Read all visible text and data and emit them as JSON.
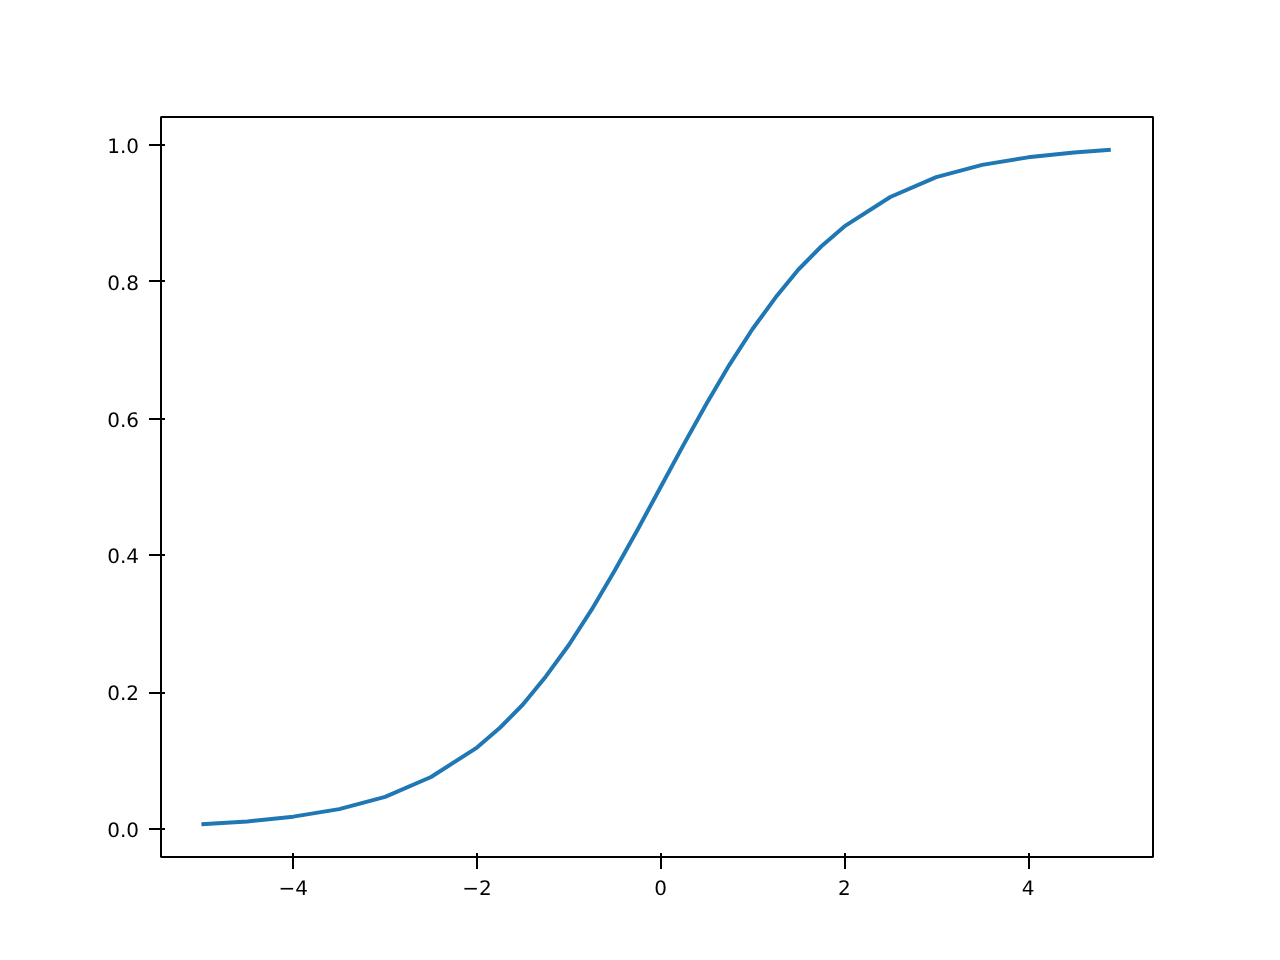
{
  "chart_data": {
    "type": "line",
    "x": [
      -5,
      -4.5,
      -4,
      -3.5,
      -3,
      -2.5,
      -2,
      -1.75,
      -1.5,
      -1.25,
      -1,
      -0.75,
      -0.5,
      -0.25,
      0,
      0.25,
      0.5,
      0.75,
      1,
      1.25,
      1.5,
      1.75,
      2,
      2.5,
      3,
      3.5,
      4,
      4.5,
      4.9
    ],
    "series": [
      {
        "color": "#1f77b4",
        "values": [
          0.007,
          0.011,
          0.018,
          0.029,
          0.047,
          0.076,
          0.119,
          0.148,
          0.182,
          0.223,
          0.269,
          0.321,
          0.378,
          0.438,
          0.5,
          0.562,
          0.622,
          0.679,
          0.731,
          0.777,
          0.818,
          0.852,
          0.881,
          0.924,
          0.953,
          0.971,
          0.982,
          0.989,
          0.993
        ]
      }
    ],
    "xlim": [
      -5.44,
      5.36
    ],
    "ylim": [
      -0.041,
      1.041
    ],
    "xticks": [
      -4,
      -2,
      0,
      2,
      4
    ],
    "yticks": [
      {
        "value": 0,
        "label": "0.0"
      },
      {
        "value": 0.2,
        "label": "0.2"
      },
      {
        "value": 0.4,
        "label": "0.4"
      },
      {
        "value": 0.6,
        "label": "0.6"
      },
      {
        "value": 0.8,
        "label": "0.8"
      },
      {
        "value": 1,
        "label": "1.0"
      }
    ],
    "grid": false
  }
}
